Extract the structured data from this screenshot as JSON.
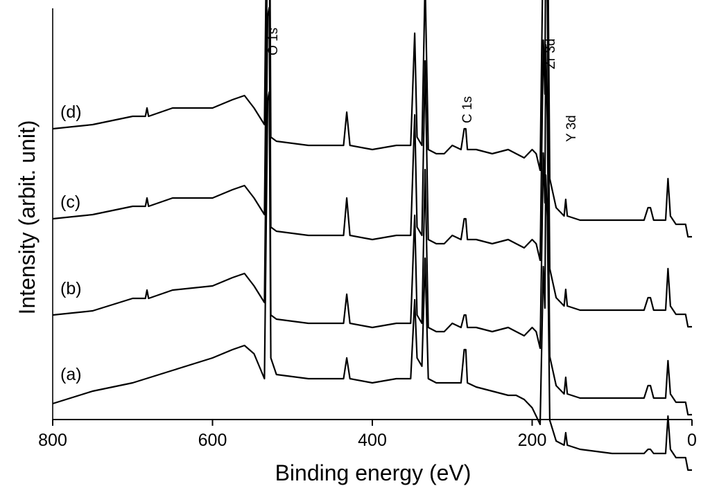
{
  "chart_data": {
    "type": "line",
    "title": "",
    "xlabel": "Binding energy (eV)",
    "ylabel": "Intensity (arbit. unit)",
    "xlim": [
      800,
      0
    ],
    "x_reversed": true,
    "x_ticks": [
      "800",
      "600",
      "400",
      "200",
      "0"
    ],
    "y_ticks_shown": false,
    "grid": false,
    "stacked_offset": true,
    "peak_annotations": [
      "O 1s",
      "C 1s",
      "Zr 3d",
      "Y 3d"
    ],
    "series": [
      {
        "name": "(a)",
        "points": [
          [
            800,
            -3
          ],
          [
            750,
            0
          ],
          [
            700,
            2
          ],
          [
            650,
            5
          ],
          [
            600,
            8
          ],
          [
            575,
            10
          ],
          [
            560,
            11
          ],
          [
            548,
            9
          ],
          [
            535,
            3
          ],
          [
            531,
            70
          ],
          [
            529,
            72
          ],
          [
            527,
            8
          ],
          [
            520,
            4
          ],
          [
            480,
            3
          ],
          [
            450,
            3
          ],
          [
            436,
            3
          ],
          [
            432,
            8
          ],
          [
            428,
            3
          ],
          [
            400,
            2
          ],
          [
            370,
            3
          ],
          [
            360,
            3
          ],
          [
            352,
            3
          ],
          [
            347,
            22
          ],
          [
            344,
            8
          ],
          [
            338,
            6
          ],
          [
            334,
            32
          ],
          [
            330,
            3
          ],
          [
            320,
            2
          ],
          [
            310,
            2
          ],
          [
            305,
            2
          ],
          [
            300,
            2
          ],
          [
            289,
            2
          ],
          [
            285,
            10
          ],
          [
            283,
            10
          ],
          [
            281,
            2
          ],
          [
            270,
            1
          ],
          [
            250,
            0
          ],
          [
            230,
            -1
          ],
          [
            220,
            -1
          ],
          [
            210,
            -2
          ],
          [
            200,
            -4
          ],
          [
            195,
            -6
          ],
          [
            190,
            -8
          ],
          [
            186,
            30
          ],
          [
            184,
            20
          ],
          [
            183,
            52
          ],
          [
            181,
            42
          ],
          [
            178,
            -7
          ],
          [
            170,
            -12
          ],
          [
            160,
            -13
          ],
          [
            158,
            -10
          ],
          [
            156,
            -13
          ],
          [
            140,
            -14
          ],
          [
            100,
            -15
          ],
          [
            60,
            -15
          ],
          [
            55,
            -14
          ],
          [
            52,
            -14
          ],
          [
            48,
            -15
          ],
          [
            33,
            -15
          ],
          [
            30,
            -6
          ],
          [
            27,
            -14
          ],
          [
            20,
            -16
          ],
          [
            15,
            -16
          ],
          [
            8,
            -16
          ],
          [
            5,
            -19
          ],
          [
            0,
            -19
          ]
        ]
      },
      {
        "name": "(b)",
        "points": [
          [
            800,
            -2
          ],
          [
            750,
            -1
          ],
          [
            700,
            2
          ],
          [
            684,
            2
          ],
          [
            682,
            4
          ],
          [
            680,
            2
          ],
          [
            650,
            4
          ],
          [
            600,
            5
          ],
          [
            575,
            7
          ],
          [
            560,
            8
          ],
          [
            548,
            5
          ],
          [
            535,
            1
          ],
          [
            531,
            70
          ],
          [
            529,
            72
          ],
          [
            527,
            -2
          ],
          [
            520,
            -3
          ],
          [
            480,
            -4
          ],
          [
            450,
            -4
          ],
          [
            436,
            -4
          ],
          [
            432,
            3
          ],
          [
            428,
            -4
          ],
          [
            400,
            -5
          ],
          [
            370,
            -4
          ],
          [
            360,
            -4
          ],
          [
            352,
            -4
          ],
          [
            347,
            22
          ],
          [
            344,
            -2
          ],
          [
            338,
            -4
          ],
          [
            334,
            33
          ],
          [
            330,
            -5
          ],
          [
            320,
            -6
          ],
          [
            310,
            -6
          ],
          [
            305,
            -5
          ],
          [
            300,
            -4
          ],
          [
            289,
            -5
          ],
          [
            285,
            -2
          ],
          [
            283,
            -2
          ],
          [
            281,
            -5
          ],
          [
            270,
            -5
          ],
          [
            250,
            -6
          ],
          [
            230,
            -5
          ],
          [
            220,
            -6
          ],
          [
            210,
            -7
          ],
          [
            200,
            -5
          ],
          [
            195,
            -6
          ],
          [
            190,
            -10
          ],
          [
            186,
            37
          ],
          [
            184,
            25
          ],
          [
            183,
            63
          ],
          [
            181,
            45
          ],
          [
            178,
            -12
          ],
          [
            170,
            -19
          ],
          [
            160,
            -21
          ],
          [
            158,
            -17
          ],
          [
            156,
            -21
          ],
          [
            140,
            -22
          ],
          [
            100,
            -22
          ],
          [
            60,
            -22
          ],
          [
            55,
            -19
          ],
          [
            52,
            -19
          ],
          [
            48,
            -22
          ],
          [
            33,
            -22
          ],
          [
            30,
            -13
          ],
          [
            27,
            -21
          ],
          [
            20,
            -23
          ],
          [
            15,
            -23
          ],
          [
            8,
            -23
          ],
          [
            5,
            -26
          ],
          [
            0,
            -26
          ]
        ]
      },
      {
        "name": "(c)",
        "points": [
          [
            800,
            0
          ],
          [
            750,
            1
          ],
          [
            700,
            3
          ],
          [
            684,
            3
          ],
          [
            682,
            5
          ],
          [
            680,
            3
          ],
          [
            650,
            5
          ],
          [
            600,
            5
          ],
          [
            575,
            7
          ],
          [
            560,
            8
          ],
          [
            548,
            5
          ],
          [
            535,
            1
          ],
          [
            531,
            70
          ],
          [
            529,
            72
          ],
          [
            527,
            -2
          ],
          [
            520,
            -3
          ],
          [
            480,
            -4
          ],
          [
            450,
            -4
          ],
          [
            436,
            -4
          ],
          [
            432,
            5
          ],
          [
            428,
            -4
          ],
          [
            400,
            -5
          ],
          [
            370,
            -4
          ],
          [
            360,
            -4
          ],
          [
            352,
            -4
          ],
          [
            347,
            25
          ],
          [
            344,
            -2
          ],
          [
            338,
            -4
          ],
          [
            334,
            38
          ],
          [
            330,
            -5
          ],
          [
            320,
            -6
          ],
          [
            310,
            -6
          ],
          [
            305,
            -5
          ],
          [
            300,
            -4
          ],
          [
            289,
            -5
          ],
          [
            285,
            0
          ],
          [
            283,
            0
          ],
          [
            281,
            -5
          ],
          [
            270,
            -5
          ],
          [
            250,
            -6
          ],
          [
            230,
            -5
          ],
          [
            220,
            -6
          ],
          [
            210,
            -7
          ],
          [
            200,
            -5
          ],
          [
            195,
            -6
          ],
          [
            190,
            -10
          ],
          [
            186,
            43
          ],
          [
            184,
            30
          ],
          [
            183,
            70
          ],
          [
            181,
            52
          ],
          [
            178,
            -12
          ],
          [
            170,
            -19
          ],
          [
            160,
            -21
          ],
          [
            158,
            -17
          ],
          [
            156,
            -21
          ],
          [
            140,
            -22
          ],
          [
            100,
            -22
          ],
          [
            60,
            -22
          ],
          [
            55,
            -19
          ],
          [
            52,
            -19
          ],
          [
            48,
            -22
          ],
          [
            33,
            -22
          ],
          [
            30,
            -12
          ],
          [
            27,
            -21
          ],
          [
            20,
            -23
          ],
          [
            15,
            -23
          ],
          [
            8,
            -23
          ],
          [
            5,
            -26
          ],
          [
            0,
            -26
          ]
        ]
      },
      {
        "name": "(d)",
        "points": [
          [
            800,
            0
          ],
          [
            750,
            1
          ],
          [
            700,
            3
          ],
          [
            684,
            3
          ],
          [
            682,
            5
          ],
          [
            680,
            3
          ],
          [
            650,
            5
          ],
          [
            600,
            5
          ],
          [
            575,
            7
          ],
          [
            560,
            8
          ],
          [
            548,
            5
          ],
          [
            535,
            1
          ],
          [
            531,
            70
          ],
          [
            529,
            72
          ],
          [
            527,
            -2
          ],
          [
            520,
            -3
          ],
          [
            480,
            -4
          ],
          [
            450,
            -4
          ],
          [
            436,
            -4
          ],
          [
            432,
            4
          ],
          [
            428,
            -4
          ],
          [
            400,
            -5
          ],
          [
            370,
            -4
          ],
          [
            360,
            -4
          ],
          [
            352,
            -4
          ],
          [
            347,
            23
          ],
          [
            344,
            -2
          ],
          [
            338,
            -4
          ],
          [
            334,
            36
          ],
          [
            330,
            -5
          ],
          [
            320,
            -6
          ],
          [
            310,
            -6
          ],
          [
            305,
            -5
          ],
          [
            300,
            -4
          ],
          [
            289,
            -5
          ],
          [
            285,
            0
          ],
          [
            283,
            0
          ],
          [
            281,
            -5
          ],
          [
            270,
            -5
          ],
          [
            250,
            -6
          ],
          [
            230,
            -5
          ],
          [
            220,
            -6
          ],
          [
            210,
            -7
          ],
          [
            200,
            -5
          ],
          [
            195,
            -6
          ],
          [
            190,
            -10
          ],
          [
            186,
            48
          ],
          [
            184,
            33
          ],
          [
            183,
            75
          ],
          [
            181,
            58
          ],
          [
            178,
            -12
          ],
          [
            170,
            -19
          ],
          [
            160,
            -21
          ],
          [
            158,
            -17
          ],
          [
            156,
            -21
          ],
          [
            140,
            -22
          ],
          [
            100,
            -22
          ],
          [
            60,
            -22
          ],
          [
            55,
            -19
          ],
          [
            52,
            -19
          ],
          [
            48,
            -22
          ],
          [
            33,
            -22
          ],
          [
            30,
            -12
          ],
          [
            27,
            -21
          ],
          [
            20,
            -23
          ],
          [
            15,
            -23
          ],
          [
            8,
            -23
          ],
          [
            5,
            -26
          ],
          [
            0,
            -26
          ]
        ]
      }
    ]
  }
}
